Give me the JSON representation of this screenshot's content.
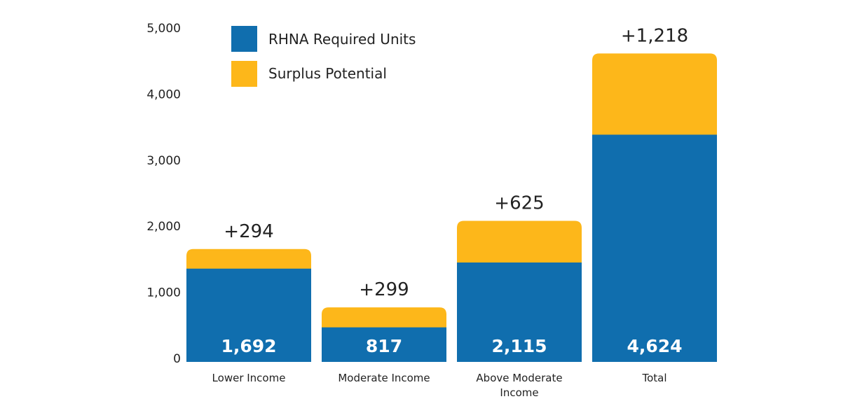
{
  "chart_data": {
    "type": "bar",
    "stacked": true,
    "categories": [
      [
        "Lower Income"
      ],
      [
        "Moderate Income"
      ],
      [
        "Above Moderate",
        "Income"
      ],
      [
        "Total"
      ]
    ],
    "total_labels": [
      "1,692",
      "817",
      "2,115",
      "4,624"
    ],
    "totals": [
      1692,
      817,
      2115,
      4624
    ],
    "surplus_labels": [
      "+294",
      "+299",
      "+625",
      "+1,218"
    ],
    "series": [
      {
        "name": "RHNA Required Units",
        "values": [
          1398,
          518,
          1490,
          3406
        ],
        "color": "#106eae"
      },
      {
        "name": "Surplus Potential",
        "values": [
          294,
          299,
          625,
          1218
        ],
        "color": "#fdb71a"
      }
    ],
    "yticks": [
      "0",
      "1,000",
      "2,000",
      "3,000",
      "4,000",
      "5,000"
    ],
    "ylim": [
      0,
      5000
    ],
    "grid": false,
    "legend": "top-left"
  }
}
